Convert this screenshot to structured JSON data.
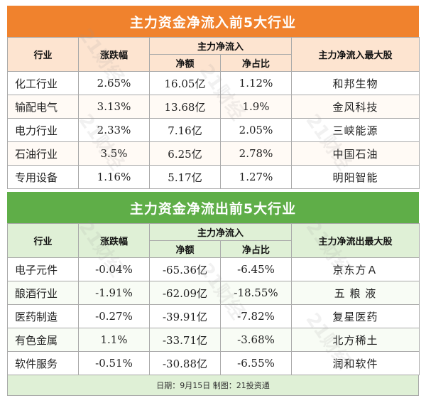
{
  "inflow": {
    "title": "主力资金净流入前5大行业",
    "headers": {
      "industry": "行业",
      "change": "涨跌幅",
      "net_group": "主力净流入",
      "net_amount": "净额",
      "net_ratio": "净占比",
      "top_stock": "主力净流入最大股"
    },
    "rows": [
      {
        "industry": "化工行业",
        "change": "2.65%",
        "net_amount": "16.05亿",
        "net_ratio": "1.12%",
        "top_stock": "和邦生物"
      },
      {
        "industry": "输配电气",
        "change": "3.13%",
        "net_amount": "13.68亿",
        "net_ratio": "1.9%",
        "top_stock": "金风科技"
      },
      {
        "industry": "电力行业",
        "change": "2.33%",
        "net_amount": "7.16亿",
        "net_ratio": "2.05%",
        "top_stock": "三峡能源"
      },
      {
        "industry": "石油行业",
        "change": "3.5%",
        "net_amount": "6.25亿",
        "net_ratio": "2.78%",
        "top_stock": "中国石油"
      },
      {
        "industry": "专用设备",
        "change": "1.16%",
        "net_amount": "5.17亿",
        "net_ratio": "1.27%",
        "top_stock": "明阳智能"
      }
    ]
  },
  "outflow": {
    "title": "主力资金净流出前5大行业",
    "headers": {
      "industry": "行业",
      "change": "涨跌幅",
      "net_group": "主力净流入",
      "net_amount": "净额",
      "net_ratio": "净占比",
      "top_stock": "主力净流出最大股"
    },
    "rows": [
      {
        "industry": "电子元件",
        "change": "-0.04%",
        "net_amount": "-65.36亿",
        "net_ratio": "-6.45%",
        "top_stock": "京东方Ａ"
      },
      {
        "industry": "酿酒行业",
        "change": "-1.91%",
        "net_amount": "-62.09亿",
        "net_ratio": "-18.55%",
        "top_stock": "五 粮 液"
      },
      {
        "industry": "医药制造",
        "change": "-0.27%",
        "net_amount": "-39.91亿",
        "net_ratio": "-7.82%",
        "top_stock": "复星医药"
      },
      {
        "industry": "有色金属",
        "change": "1.1%",
        "net_amount": "-33.71亿",
        "net_ratio": "-3.68%",
        "top_stock": "北方稀土"
      },
      {
        "industry": "软件服务",
        "change": "-0.51%",
        "net_amount": "-30.88亿",
        "net_ratio": "-6.55%",
        "top_stock": "润和软件"
      }
    ]
  },
  "footer": "日期：9月15日  制图：21投资通",
  "watermark": "21财经",
  "colors": {
    "inflow_accent": "#f0822d",
    "outflow_accent": "#5fae48"
  }
}
